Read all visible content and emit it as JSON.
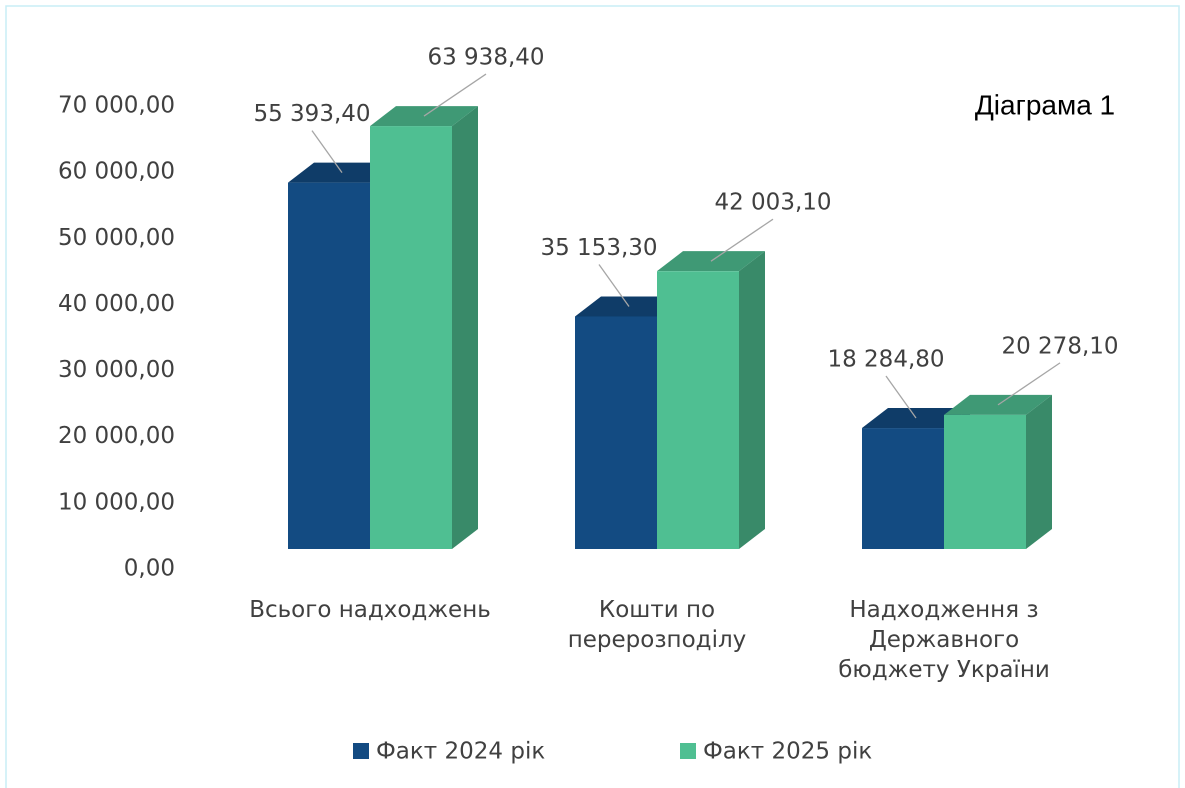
{
  "chart_data": {
    "type": "bar3d",
    "annotation": "Діаграма 1",
    "categories": [
      "Всього надходжень",
      "Кошти по перерозподілу",
      "Надходження з Державного бюджету України"
    ],
    "series": [
      {
        "name": "Факт 2024 рік",
        "color": "#134b82",
        "values": [
          55393.4,
          35153.3,
          18284.8
        ],
        "value_labels": [
          "55 393,40",
          "35 153,30",
          "18 284,80"
        ]
      },
      {
        "name": "Факт 2025 рік",
        "color": "#4fbf92",
        "values": [
          63938.4,
          42003.1,
          20278.1
        ],
        "value_labels": [
          "63 938,40",
          "42 003,10",
          "20 278,10"
        ]
      }
    ],
    "ylim": [
      0,
      70000
    ],
    "yticks": [
      {
        "value": 0,
        "label": "0,00"
      },
      {
        "value": 10000,
        "label": "10 000,00"
      },
      {
        "value": 20000,
        "label": "20 000,00"
      },
      {
        "value": 30000,
        "label": "30 000,00"
      },
      {
        "value": 40000,
        "label": "40 000,00"
      },
      {
        "value": 50000,
        "label": "50 000,00"
      },
      {
        "value": 60000,
        "label": "60 000,00"
      },
      {
        "value": 70000,
        "label": "70 000,00"
      }
    ],
    "legend": "bottom"
  }
}
